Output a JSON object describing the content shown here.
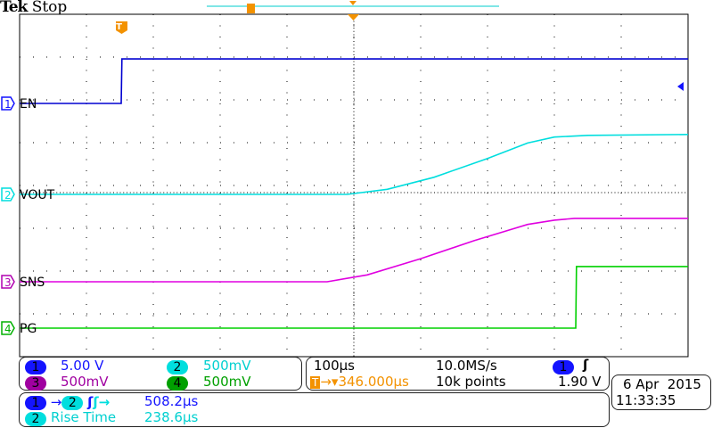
{
  "header": {
    "brand": "Tek",
    "status": "Stop"
  },
  "colors": {
    "ch1": "#1414ff",
    "ch2": "#00dede",
    "ch3": "#b000b0",
    "ch4": "#00b000",
    "trigger": "#f39200",
    "ch1_trace": "#0000d0",
    "ch3_trace": "#e000e0",
    "ch4_trace": "#00d000"
  },
  "channels": [
    {
      "num": "1",
      "label": "EN",
      "scale": "5.00 V"
    },
    {
      "num": "2",
      "label": "VOUT",
      "scale": "500mV"
    },
    {
      "num": "3",
      "label": "SNS",
      "scale": "500mV"
    },
    {
      "num": "4",
      "label": "PG",
      "scale": "500mV"
    }
  ],
  "timebase": {
    "scale": "100µs",
    "sample_rate": "10.0MS/s",
    "trigger_position": "346.000µs",
    "record_length": "10k points",
    "trigger_channel": "1",
    "trigger_level": "1.90 V",
    "trigger_icon": "T",
    "slope_icon": "rising-edge"
  },
  "measurements": [
    {
      "ch": "1",
      "ch2": "2",
      "label": "",
      "value": "508.2µs",
      "icon": "rising-to-rising-delay"
    },
    {
      "ch": "2",
      "label": "Rise Time",
      "value": "238.6µs"
    }
  ],
  "datetime": {
    "date": "6 Apr  2015",
    "time": "11:33:35"
  },
  "chart_data": {
    "type": "line",
    "xlabel": "",
    "ylabel": "",
    "x_unit": "µs",
    "xlim": [
      -500,
      500
    ],
    "x_div": 100,
    "y_divisions": 8,
    "grid": true,
    "series": [
      {
        "name": "EN",
        "channel": "1",
        "volts_per_div": 5,
        "offset_div": 2.083,
        "x": [
          -500,
          -348,
          -347,
          500
        ],
        "y": [
          0,
          0,
          5.2,
          5.2
        ]
      },
      {
        "name": "VOUT",
        "channel": "2",
        "volts_per_div": 0.5,
        "offset_div": -0.042,
        "x": [
          -500,
          -10,
          50,
          120,
          200,
          260,
          300,
          350,
          500
        ],
        "y": [
          0,
          0,
          0.06,
          0.2,
          0.42,
          0.6,
          0.67,
          0.69,
          0.7
        ]
      },
      {
        "name": "SNS",
        "channel": "3",
        "volts_per_div": 0.5,
        "offset_div": -2.083,
        "x": [
          -500,
          -40,
          20,
          100,
          180,
          260,
          300,
          330,
          500
        ],
        "y": [
          0,
          0,
          0.08,
          0.27,
          0.48,
          0.67,
          0.72,
          0.74,
          0.74
        ]
      },
      {
        "name": "PG",
        "channel": "4",
        "volts_per_div": 0.5,
        "offset_div": -3.167,
        "x": [
          -500,
          332,
          333,
          500
        ],
        "y": [
          0,
          0,
          0.72,
          0.72
        ]
      }
    ]
  }
}
